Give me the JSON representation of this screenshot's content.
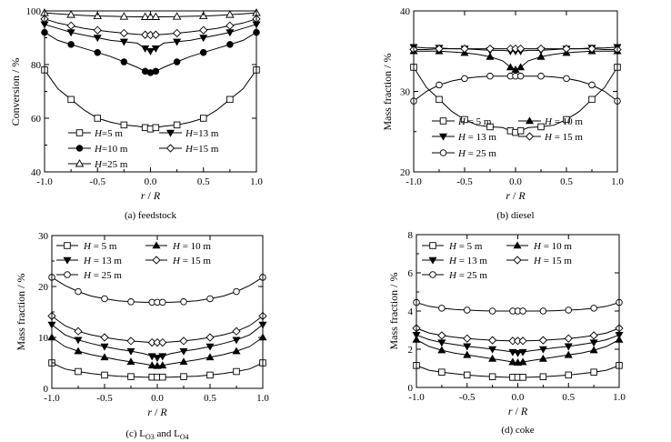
{
  "chart_data": [
    {
      "type": "line",
      "id": "a",
      "caption": "(a) feedstock",
      "ylabel": "Conversion / %",
      "xlabel": {
        "italic_r": "r",
        "slash": " / ",
        "italic_R": "R"
      },
      "xlim": [
        -1.0,
        1.0
      ],
      "ylim": [
        40,
        100
      ],
      "xticks": [
        "-1.0",
        "-0.5",
        "0.0",
        "0.5",
        "1.0"
      ],
      "yticks": [
        "40",
        "60",
        "80",
        "100"
      ],
      "ytick_values": [
        40,
        60,
        80,
        100
      ],
      "x": [
        -1.0,
        -0.875,
        -0.75,
        -0.625,
        -0.5,
        -0.375,
        -0.25,
        -0.125,
        -0.05,
        0.0,
        0.05,
        0.125,
        0.25,
        0.375,
        0.5,
        0.625,
        0.75,
        0.875,
        1.0
      ],
      "series": [
        {
          "name": "H=5 m",
          "label": {
            "h": "H",
            "rest": "=5 m"
          },
          "marker": "square",
          "values": [
            78,
            71,
            67,
            63,
            60,
            58.5,
            57.5,
            57,
            56.5,
            56,
            56.5,
            57,
            57.5,
            58.5,
            60,
            63,
            67,
            71,
            78
          ]
        },
        {
          "name": "H=13 m",
          "label": {
            "h": "H",
            "rest": "=13 m"
          },
          "marker": "triangle-down",
          "values": [
            95,
            93.5,
            92,
            91,
            90,
            89,
            88.5,
            88,
            86,
            85,
            86,
            88,
            88.5,
            89,
            90,
            91,
            92,
            93.5,
            95
          ]
        },
        {
          "name": "H=10 m",
          "label": {
            "h": "H",
            "rest": "=10 m"
          },
          "marker": "circle-filled",
          "values": [
            92,
            89,
            87.5,
            86,
            84.5,
            83,
            81,
            79,
            77.5,
            77,
            77.5,
            79,
            81,
            83,
            84.5,
            86,
            87.5,
            89,
            92
          ]
        },
        {
          "name": "H=15 m",
          "label": {
            "h": "H",
            "rest": "=15 m"
          },
          "marker": "diamond",
          "values": [
            97,
            95.5,
            94.5,
            93.5,
            92.8,
            92.2,
            91.7,
            91.3,
            91.1,
            91,
            91.1,
            91.3,
            91.7,
            92.2,
            92.8,
            93.5,
            94.5,
            95.5,
            97
          ]
        },
        {
          "name": "H=25 m",
          "label": {
            "h": "H",
            "rest": "=25 m"
          },
          "marker": "triangle-up",
          "values": [
            99.3,
            98.9,
            98.6,
            98.3,
            98.1,
            98,
            97.9,
            97.8,
            97.8,
            97.8,
            97.8,
            97.8,
            97.9,
            98,
            98.1,
            98.3,
            98.6,
            98.9,
            99.3
          ]
        }
      ]
    },
    {
      "type": "line",
      "id": "b",
      "caption": "(b) diesel",
      "ylabel": "Mass  fraction / %",
      "xlabel": {
        "italic_r": "r",
        "slash": " / ",
        "italic_R": "R"
      },
      "xlim": [
        -1.0,
        1.0
      ],
      "ylim": [
        20,
        40
      ],
      "xticks": [
        "-1.0",
        "-0.5",
        "0.0",
        "0.5",
        "1.0"
      ],
      "yticks": [
        "20",
        "30",
        "40"
      ],
      "ytick_values": [
        20,
        30,
        40
      ],
      "x": [
        -1.0,
        -0.875,
        -0.75,
        -0.625,
        -0.5,
        -0.375,
        -0.25,
        -0.125,
        -0.05,
        0.0,
        0.05,
        0.125,
        0.25,
        0.375,
        0.5,
        0.625,
        0.75,
        0.875,
        1.0
      ],
      "series": [
        {
          "name": "H = 5 m",
          "label": {
            "h": "H",
            "rest": " = 5 m"
          },
          "marker": "square",
          "values": [
            33,
            30.5,
            29,
            27.5,
            26.5,
            25.8,
            25.6,
            25.5,
            25.1,
            24.9,
            25.1,
            25.5,
            25.6,
            25.8,
            26.5,
            27.5,
            29,
            30.5,
            33
          ]
        },
        {
          "name": "H = 10 m",
          "label": {
            "h": "H",
            "rest": " = 10 m"
          },
          "marker": "triangle-up",
          "values": [
            35,
            35,
            35,
            34.9,
            34.8,
            34.6,
            34.3,
            33.8,
            33,
            32.7,
            33,
            33.8,
            34.3,
            34.6,
            34.8,
            34.9,
            35,
            35,
            35
          ]
        },
        {
          "name": "H = 13 m",
          "label": {
            "h": "H",
            "rest": " = 13 m"
          },
          "marker": "triangle-down",
          "values": [
            35.5,
            35.4,
            35.4,
            35.3,
            35.3,
            35.2,
            35.1,
            35.1,
            35.0,
            35.0,
            35.0,
            35.1,
            35.1,
            35.2,
            35.3,
            35.3,
            35.4,
            35.4,
            35.5
          ]
        },
        {
          "name": "H = 15 m",
          "label": {
            "h": "H",
            "rest": " = 15 m"
          },
          "marker": "diamond",
          "values": [
            35.2,
            35.2,
            35.3,
            35.3,
            35.3,
            35.3,
            35.3,
            35.3,
            35.3,
            35.3,
            35.3,
            35.3,
            35.3,
            35.3,
            35.3,
            35.3,
            35.3,
            35.2,
            35.2
          ]
        },
        {
          "name": "H = 25 m",
          "label": {
            "h": "H",
            "rest": " = 25 m"
          },
          "marker": "circle",
          "values": [
            28.8,
            30,
            30.8,
            31.3,
            31.6,
            31.8,
            31.9,
            31.9,
            31.9,
            31.9,
            31.9,
            31.9,
            31.9,
            31.8,
            31.6,
            31.3,
            30.8,
            30,
            28.8
          ]
        }
      ]
    },
    {
      "type": "line",
      "id": "c",
      "caption": {
        "pre": "(c) L",
        "sub1": "O3",
        "mid": " and L",
        "sub2": "O4"
      },
      "ylabel": "Mass fraction / %",
      "xlabel": {
        "italic_r": "r",
        "slash": " / ",
        "italic_R": "R"
      },
      "xlim": [
        -1.0,
        1.0
      ],
      "ylim": [
        0,
        30
      ],
      "xticks": [
        "-1.0",
        "-0.5",
        "0.0",
        "0.5",
        "1.0"
      ],
      "yticks": [
        "0",
        "10",
        "20",
        "30"
      ],
      "ytick_values": [
        0,
        10,
        20,
        30
      ],
      "x": [
        -1.0,
        -0.875,
        -0.75,
        -0.625,
        -0.5,
        -0.375,
        -0.25,
        -0.125,
        -0.05,
        0.0,
        0.05,
        0.125,
        0.25,
        0.375,
        0.5,
        0.625,
        0.75,
        0.875,
        1.0
      ],
      "series": [
        {
          "name": "H = 5 m",
          "label": {
            "h": "H",
            "rest": " = 5 m"
          },
          "marker": "square",
          "values": [
            5,
            3.8,
            3.3,
            2.9,
            2.6,
            2.4,
            2.3,
            2.2,
            2.2,
            2.2,
            2.2,
            2.2,
            2.3,
            2.4,
            2.6,
            2.9,
            3.3,
            3.8,
            5
          ]
        },
        {
          "name": "H = 10 m",
          "label": {
            "h": "H",
            "rest": " = 10 m"
          },
          "marker": "triangle-up",
          "values": [
            10,
            8.2,
            7.3,
            6.6,
            6.1,
            5.6,
            5.2,
            4.8,
            4.5,
            4.4,
            4.5,
            4.8,
            5.2,
            5.6,
            6.1,
            6.6,
            7.3,
            8.2,
            10
          ]
        },
        {
          "name": "H = 13 m",
          "label": {
            "h": "H",
            "rest": " = 13 m"
          },
          "marker": "triangle-down",
          "values": [
            12.5,
            10.5,
            9.5,
            8.8,
            8.2,
            7.7,
            7.3,
            6.8,
            6.3,
            6.0,
            6.3,
            6.8,
            7.3,
            7.7,
            8.2,
            8.8,
            9.5,
            10.5,
            12.5
          ]
        },
        {
          "name": "H = 15 m",
          "label": {
            "h": "H",
            "rest": " = 15 m"
          },
          "marker": "diamond",
          "values": [
            14.2,
            12.3,
            11.2,
            10.5,
            10,
            9.6,
            9.3,
            9.1,
            9.0,
            9.0,
            9.0,
            9.1,
            9.3,
            9.6,
            10,
            10.5,
            11.2,
            12.3,
            14.2
          ]
        },
        {
          "name": "H = 25 m",
          "label": {
            "h": "H",
            "rest": " = 25 m"
          },
          "marker": "circle",
          "values": [
            21.8,
            20.2,
            19,
            18.1,
            17.6,
            17.2,
            17,
            16.9,
            16.9,
            16.9,
            16.9,
            16.9,
            17,
            17.2,
            17.6,
            18.1,
            19,
            20.2,
            21.8
          ]
        }
      ]
    },
    {
      "type": "line",
      "id": "d",
      "caption": "(d) coke",
      "ylabel": "Mass fraction / %",
      "xlabel": {
        "italic_r": "r",
        "slash": " / ",
        "italic_R": "R"
      },
      "xlim": [
        -1.0,
        1.0
      ],
      "ylim": [
        0,
        8
      ],
      "xticks": [
        "-1.0",
        "-0.5",
        "0.0",
        "0.5",
        "1.0"
      ],
      "yticks": [
        "0",
        "2",
        "4",
        "6",
        "8"
      ],
      "ytick_values": [
        0,
        2,
        4,
        6,
        8
      ],
      "x": [
        -1.0,
        -0.875,
        -0.75,
        -0.625,
        -0.5,
        -0.375,
        -0.25,
        -0.125,
        -0.05,
        0.0,
        0.05,
        0.125,
        0.25,
        0.375,
        0.5,
        0.625,
        0.75,
        0.875,
        1.0
      ],
      "series": [
        {
          "name": "H = 5 m",
          "label": {
            "h": "H",
            "rest": " = 5 m"
          },
          "marker": "square",
          "values": [
            1.15,
            0.9,
            0.8,
            0.72,
            0.65,
            0.6,
            0.56,
            0.54,
            0.53,
            0.53,
            0.53,
            0.54,
            0.56,
            0.6,
            0.65,
            0.72,
            0.8,
            0.9,
            1.15
          ]
        },
        {
          "name": "H = 10 m",
          "label": {
            "h": "H",
            "rest": " = 10 m"
          },
          "marker": "triangle-up",
          "values": [
            2.5,
            2.15,
            1.95,
            1.8,
            1.7,
            1.6,
            1.5,
            1.4,
            1.33,
            1.3,
            1.33,
            1.4,
            1.5,
            1.6,
            1.7,
            1.8,
            1.95,
            2.15,
            2.5
          ]
        },
        {
          "name": "H = 13 m",
          "label": {
            "h": "H",
            "rest": " = 13 m"
          },
          "marker": "triangle-down",
          "values": [
            2.75,
            2.5,
            2.35,
            2.25,
            2.15,
            2.08,
            2.0,
            1.92,
            1.85,
            1.8,
            1.85,
            1.92,
            2.0,
            2.08,
            2.15,
            2.25,
            2.35,
            2.5,
            2.75
          ]
        },
        {
          "name": "H = 15 m",
          "label": {
            "h": "H",
            "rest": " = 15 m"
          },
          "marker": "diamond",
          "values": [
            3.1,
            2.85,
            2.72,
            2.63,
            2.56,
            2.51,
            2.47,
            2.45,
            2.44,
            2.44,
            2.44,
            2.45,
            2.47,
            2.51,
            2.56,
            2.63,
            2.72,
            2.85,
            3.1
          ]
        },
        {
          "name": "H = 25 m",
          "label": {
            "h": "H",
            "rest": " = 25 m"
          },
          "marker": "circle",
          "values": [
            4.45,
            4.25,
            4.15,
            4.08,
            4.05,
            4.02,
            4.0,
            4.0,
            4.0,
            4.0,
            4.0,
            4.0,
            4.0,
            4.02,
            4.05,
            4.08,
            4.15,
            4.25,
            4.45
          ]
        }
      ]
    }
  ]
}
